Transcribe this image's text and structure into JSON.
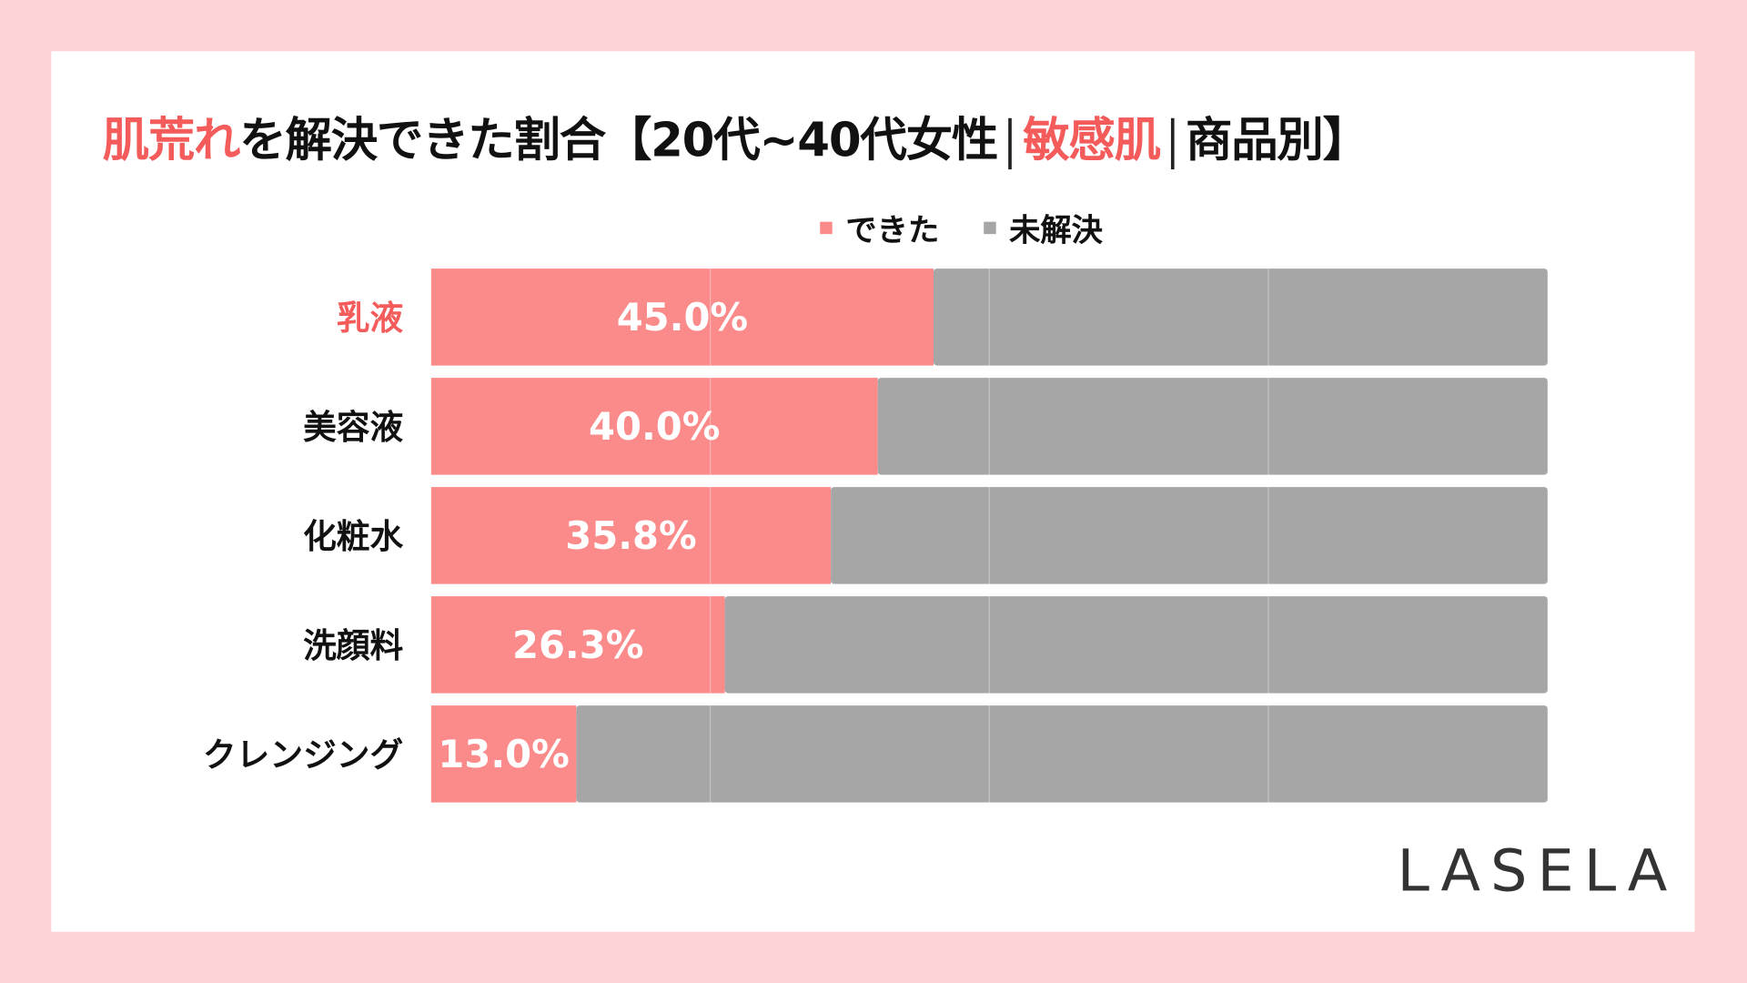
{
  "colors": {
    "background": "#fdd4d5",
    "resolved": "#fb8a8a",
    "unresolved": "#a6a6a6",
    "highlight": "#f45b5b",
    "text": "#111111"
  },
  "title": {
    "part1": "肌荒れ",
    "part2": "を解決できた割合【20代~40代女性",
    "part3": "敏感肌",
    "part4": "商品別】"
  },
  "logo": "LASELA",
  "chart_data": {
    "type": "bar",
    "orientation": "horizontal",
    "stacked": true,
    "categories": [
      "乳液",
      "美容液",
      "化粧水",
      "洗顔料",
      "クレンジング"
    ],
    "highlighted_category": "乳液",
    "series": [
      {
        "name": "できた",
        "values": [
          45.0,
          40.0,
          35.8,
          26.3,
          13.0
        ],
        "color": "#fb8a8a"
      },
      {
        "name": "未解決",
        "values": [
          55.0,
          60.0,
          64.2,
          73.7,
          87.0
        ],
        "color": "#a6a6a6"
      }
    ],
    "data_labels": [
      "45.0%",
      "40.0%",
      "35.8%",
      "26.3%",
      "13.0%"
    ],
    "xlim": [
      0,
      100
    ],
    "grid": true,
    "legend": "top"
  }
}
